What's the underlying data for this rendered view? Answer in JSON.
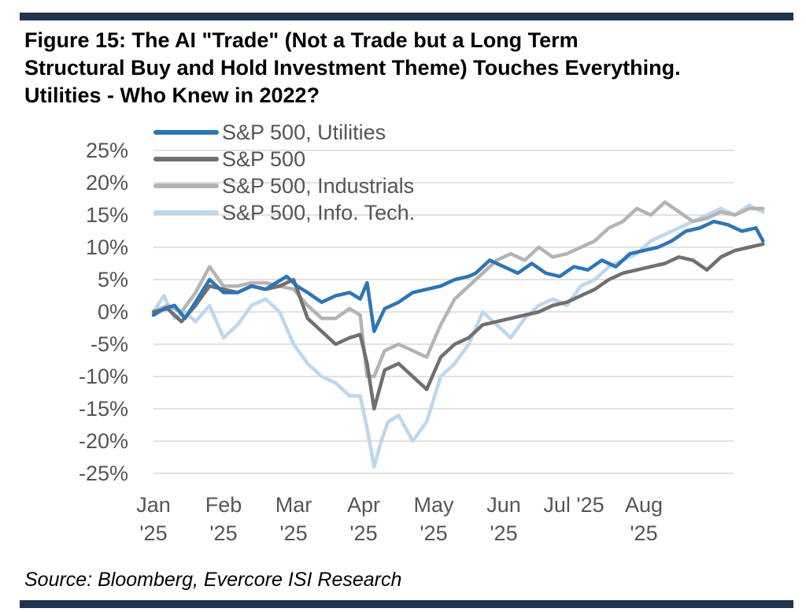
{
  "figure": {
    "title_line1": "Figure 15: The AI \"Trade\" (Not a Trade but a Long Term",
    "title_line2": "Structural Buy and Hold Investment Theme) Touches Everything.",
    "title_line3": "Utilities - Who Knew in 2022?",
    "source": "Source: Bloomberg, Evercore ISI Research"
  },
  "colors": {
    "rule": "#1f3350",
    "grid": "#d9d9d9",
    "tick_text": "#555555"
  },
  "chart_data": {
    "type": "line",
    "title": "Figure 15: The AI \"Trade\" (Not a Trade but a Long Term Structural Buy and Hold Investment Theme) Touches Everything. Utilities - Who Knew in 2022?",
    "xlabel": "",
    "ylabel": "",
    "ylim": [
      -25,
      25
    ],
    "xlim": [
      0,
      8.75
    ],
    "grid": true,
    "legend_position": "top-left",
    "y_ticks": [
      {
        "value": 25,
        "label": "25%"
      },
      {
        "value": 20,
        "label": "20%"
      },
      {
        "value": 15,
        "label": "15%"
      },
      {
        "value": 10,
        "label": "10%"
      },
      {
        "value": 5,
        "label": "5%"
      },
      {
        "value": 0,
        "label": "0%"
      },
      {
        "value": -5,
        "label": "-5%"
      },
      {
        "value": -10,
        "label": "-10%"
      },
      {
        "value": -15,
        "label": "-15%"
      },
      {
        "value": -20,
        "label": "-20%"
      },
      {
        "value": -25,
        "label": "-25%"
      }
    ],
    "x_ticks": [
      {
        "value": 0,
        "line1": "Jan",
        "line2": "'25"
      },
      {
        "value": 1,
        "line1": "Feb",
        "line2": "'25"
      },
      {
        "value": 2,
        "line1": "Mar",
        "line2": "'25"
      },
      {
        "value": 3,
        "line1": "Apr",
        "line2": "'25"
      },
      {
        "value": 4,
        "line1": "May",
        "line2": "'25"
      },
      {
        "value": 5,
        "line1": "Jun",
        "line2": "'25"
      },
      {
        "value": 6,
        "line1": "Jul '25",
        "line2": ""
      },
      {
        "value": 7,
        "line1": "Aug",
        "line2": "'25"
      }
    ],
    "series": [
      {
        "name": "S&P 500, Utilities",
        "color": "#2e75b6",
        "x": [
          0,
          0.15,
          0.3,
          0.45,
          0.6,
          0.8,
          1.0,
          1.2,
          1.4,
          1.6,
          1.75,
          1.9,
          2.05,
          2.2,
          2.4,
          2.6,
          2.8,
          2.95,
          3.05,
          3.15,
          3.3,
          3.5,
          3.7,
          3.9,
          4.1,
          4.3,
          4.5,
          4.6,
          4.8,
          5.0,
          5.2,
          5.4,
          5.6,
          5.8,
          6.0,
          6.2,
          6.4,
          6.6,
          6.8,
          7.0,
          7.2,
          7.4,
          7.6,
          7.8,
          8.0,
          8.2,
          8.4,
          8.6,
          8.7
        ],
        "values": [
          -0.5,
          0.5,
          1.0,
          -1.0,
          1.5,
          5.0,
          3.0,
          3.0,
          4.0,
          3.5,
          4.5,
          5.5,
          4.0,
          3.0,
          1.5,
          2.5,
          3.0,
          2.0,
          4.5,
          -3.0,
          0.5,
          1.5,
          3.0,
          3.5,
          4.0,
          5.0,
          5.5,
          6.0,
          8.0,
          7.0,
          6.0,
          7.5,
          6.0,
          5.5,
          7.0,
          6.5,
          8.0,
          7.0,
          9.0,
          9.5,
          10.0,
          11.0,
          12.5,
          13.0,
          14.0,
          13.5,
          12.5,
          13.0,
          11.0
        ]
      },
      {
        "name": "S&P 500",
        "color": "#707070",
        "x": [
          0,
          0.2,
          0.4,
          0.6,
          0.8,
          1.0,
          1.2,
          1.4,
          1.6,
          1.8,
          2.0,
          2.2,
          2.4,
          2.6,
          2.8,
          2.95,
          3.05,
          3.15,
          3.3,
          3.5,
          3.7,
          3.9,
          4.1,
          4.3,
          4.5,
          4.7,
          4.9,
          5.1,
          5.3,
          5.5,
          5.7,
          5.9,
          6.1,
          6.3,
          6.5,
          6.7,
          6.9,
          7.1,
          7.3,
          7.5,
          7.7,
          7.9,
          8.1,
          8.3,
          8.5,
          8.7
        ],
        "values": [
          0.0,
          0.5,
          -1.5,
          1.0,
          4.0,
          3.5,
          3.0,
          4.0,
          3.5,
          4.0,
          5.0,
          -1.0,
          -3.0,
          -5.0,
          -4.0,
          -3.5,
          -8.0,
          -15.0,
          -9.0,
          -8.0,
          -10.0,
          -12.0,
          -7.0,
          -5.0,
          -4.0,
          -2.0,
          -1.5,
          -1.0,
          -0.5,
          0.0,
          1.0,
          1.5,
          2.5,
          3.5,
          5.0,
          6.0,
          6.5,
          7.0,
          7.5,
          8.5,
          8.0,
          6.5,
          8.5,
          9.5,
          10.0,
          10.5
        ]
      },
      {
        "name": "S&P 500, Industrials",
        "color": "#b4b4b4",
        "x": [
          0,
          0.2,
          0.4,
          0.6,
          0.8,
          1.0,
          1.2,
          1.4,
          1.6,
          1.8,
          2.0,
          2.2,
          2.4,
          2.6,
          2.8,
          2.95,
          3.05,
          3.15,
          3.3,
          3.5,
          3.7,
          3.9,
          4.1,
          4.3,
          4.5,
          4.7,
          4.9,
          5.1,
          5.3,
          5.5,
          5.7,
          5.9,
          6.1,
          6.3,
          6.5,
          6.7,
          6.9,
          7.1,
          7.3,
          7.5,
          7.7,
          7.9,
          8.1,
          8.3,
          8.5,
          8.7
        ],
        "values": [
          0.0,
          1.0,
          0.0,
          3.0,
          7.0,
          4.0,
          4.0,
          4.5,
          4.5,
          4.0,
          3.5,
          1.0,
          -1.0,
          -1.0,
          0.5,
          -0.5,
          -10.0,
          -10.0,
          -6.0,
          -5.0,
          -6.0,
          -7.0,
          -2.0,
          2.0,
          4.0,
          6.0,
          8.0,
          9.0,
          8.0,
          10.0,
          8.5,
          9.0,
          10.0,
          11.0,
          13.0,
          14.0,
          16.0,
          15.0,
          17.0,
          15.5,
          14.0,
          14.5,
          15.5,
          15.0,
          16.0,
          16.0
        ]
      },
      {
        "name": "S&P 500, Info. Tech.",
        "color": "#bdd7ee",
        "x": [
          0,
          0.15,
          0.3,
          0.45,
          0.6,
          0.8,
          1.0,
          1.2,
          1.4,
          1.6,
          1.8,
          2.0,
          2.2,
          2.4,
          2.6,
          2.8,
          2.95,
          3.05,
          3.15,
          3.25,
          3.35,
          3.5,
          3.7,
          3.9,
          4.1,
          4.3,
          4.5,
          4.7,
          4.9,
          5.1,
          5.3,
          5.5,
          5.7,
          5.9,
          6.1,
          6.3,
          6.5,
          6.7,
          6.9,
          7.1,
          7.3,
          7.5,
          7.7,
          7.9,
          8.1,
          8.3,
          8.5,
          8.7
        ],
        "values": [
          0.0,
          2.5,
          -1.0,
          0.0,
          -1.5,
          1.0,
          -4.0,
          -2.0,
          1.0,
          2.0,
          0.0,
          -5.0,
          -8.0,
          -10.0,
          -11.0,
          -13.0,
          -13.0,
          -18.0,
          -24.0,
          -20.0,
          -17.0,
          -16.0,
          -20.0,
          -17.0,
          -10.0,
          -8.0,
          -5.0,
          0.0,
          -2.0,
          -4.0,
          -1.0,
          1.0,
          2.0,
          1.0,
          4.0,
          5.0,
          7.0,
          8.0,
          9.0,
          11.0,
          12.0,
          13.0,
          14.0,
          15.0,
          16.0,
          15.0,
          16.5,
          15.5
        ]
      }
    ]
  }
}
